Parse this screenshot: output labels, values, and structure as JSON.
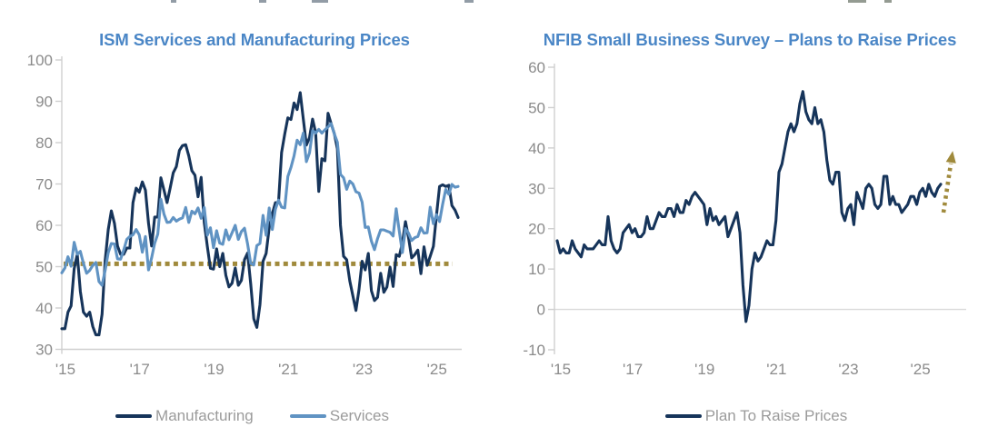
{
  "colors": {
    "navy": "#16345a",
    "light_blue": "#6093c3",
    "gold": "#a08a3c",
    "title_blue": "#4a86c6",
    "axis_text": "#8b8b8b",
    "legend_text": "#9b9b9b",
    "axis_line": "#cfcfcf",
    "gridline": "#d9d9d9"
  },
  "chart_data": [
    {
      "type": "line",
      "title": "ISM Services and Manufacturing Prices",
      "x_start": "2015-01",
      "x_end": "2025-09",
      "x_frequency": "monthly",
      "xtick_labels": [
        "'15",
        "'17",
        "'19",
        "'21",
        "'23",
        "'25"
      ],
      "xtick_years": [
        2015,
        2017,
        2019,
        2021,
        2023,
        2025
      ],
      "ylim": [
        30,
        100
      ],
      "yticks": [
        100,
        90,
        80,
        70,
        60,
        50,
        40,
        30
      ],
      "grid": "off",
      "legend_position": "bottom",
      "reference_line": {
        "value": 50.7,
        "style": "dotted",
        "color_key": "gold"
      },
      "series": [
        {
          "name": "Manufacturing",
          "color_key": "navy",
          "values": [
            35,
            35,
            39,
            40.5,
            49.5,
            53,
            44,
            39,
            38,
            39,
            35.5,
            33.5,
            33.5,
            38.5,
            51.5,
            59,
            63.5,
            60.5,
            55,
            53,
            53,
            54.5,
            54.5,
            65.5,
            69,
            68,
            70.5,
            68.5,
            60.5,
            55,
            62,
            62,
            71.5,
            68.5,
            65.5,
            69,
            72.7,
            74.2,
            78.1,
            79.3,
            79.5,
            76.8,
            73.2,
            72.1,
            66.9,
            71.6,
            60.7,
            54.9,
            49.6,
            49.4,
            54.3,
            50,
            53.2,
            47.9,
            45.1,
            46,
            49.7,
            45.5,
            46.7,
            51.7,
            53.3,
            45.9,
            37.4,
            35.3,
            40.8,
            51.3,
            53.2,
            59.5,
            62.8,
            65.5,
            65.4,
            77.6,
            82.1,
            86,
            85.6,
            89.6,
            88,
            92.1,
            85.7,
            79.4,
            81.2,
            85.7,
            82.4,
            68.2,
            76.1,
            75.6,
            87.1,
            84.6,
            82.2,
            78.5,
            60,
            52.5,
            51.7,
            46.6,
            43,
            39.4,
            44.5,
            51.3,
            49.2,
            53.2,
            44.2,
            41.8,
            42.6,
            48.4,
            43.8,
            45.1,
            49.9,
            45.2,
            52.9,
            52.5,
            55.8,
            60.9,
            57,
            52.1,
            52.9,
            54,
            48.3,
            54.8,
            50.3,
            52.5,
            54.9,
            62.4,
            69.4,
            69.8,
            69.4,
            69.7,
            64.8,
            63.7,
            61.9
          ]
        },
        {
          "name": "Services",
          "color_key": "light_blue",
          "values": [
            48.5,
            49.7,
            52.4,
            50.1,
            55.9,
            53,
            53.7,
            50.8,
            48.4,
            49.1,
            50.3,
            51,
            46.4,
            45.5,
            49.1,
            53.4,
            55.6,
            55.5,
            51.9,
            51.8,
            54,
            56.6,
            57.3,
            57.7,
            59,
            57.7,
            53.5,
            57.3,
            49.2,
            52.1,
            55.7,
            57.9,
            66.3,
            62.7,
            60.7,
            60.8,
            61.9,
            61,
            61.5,
            61.8,
            64.3,
            60.7,
            63.4,
            62.8,
            64.2,
            61.7,
            64.3,
            57.6,
            59.4,
            54.6,
            58.7,
            55.7,
            55.4,
            58.9,
            56.5,
            58.2,
            60,
            56.6,
            58.5,
            59.3,
            55.5,
            50.8,
            50.4,
            55.1,
            55.6,
            62.4,
            57.6,
            64.2,
            59,
            63.9,
            66.1,
            64.4,
            64.2,
            71.8,
            74,
            76.8,
            80.6,
            79.5,
            82.3,
            75.4,
            77.5,
            82.9,
            82.3,
            83.2,
            82.3,
            83.1,
            83.8,
            84.6,
            82.1,
            80.1,
            72.3,
            71.5,
            68.7,
            70.7,
            70,
            68.1,
            67.8,
            65.6,
            59.5,
            59.6,
            56.2,
            54.1,
            56.8,
            58.9,
            58.9,
            58.6,
            58.3,
            57.4,
            64,
            58.6,
            53.4,
            59.2,
            58.1,
            56.3,
            57,
            57.3,
            59.4,
            58.1,
            58.2,
            64.4,
            60.4,
            62.6,
            60.9,
            65.1,
            68.7,
            67.5,
            69.9,
            69.2,
            69.4
          ]
        }
      ]
    },
    {
      "type": "line",
      "title": "NFIB Small Business Survey – Plans to Raise Prices",
      "x_start": "2015-01",
      "x_end": "2025-09",
      "x_frequency": "monthly",
      "xtick_labels": [
        "'15",
        "'17",
        "'19",
        "'21",
        "'23",
        "'25"
      ],
      "xtick_years": [
        2015,
        2017,
        2019,
        2021,
        2023,
        2025
      ],
      "ylim": [
        -10,
        60
      ],
      "yticks": [
        60,
        50,
        40,
        30,
        20,
        10,
        0,
        -10
      ],
      "grid": "zero-line-only",
      "gridlines_at": [
        0
      ],
      "legend_position": "bottom",
      "annotation": {
        "type": "arrow",
        "style": "dotted",
        "color_key": "gold",
        "direction": "up",
        "value_from": 24,
        "value_to": 37.5,
        "position": "after-last-point"
      },
      "series": [
        {
          "name": "Plan To Raise Prices",
          "color_key": "navy",
          "values": [
            17,
            14,
            15,
            14,
            14,
            17,
            15,
            14,
            13,
            16,
            15,
            15,
            15,
            16,
            17,
            16,
            16,
            23,
            17,
            15,
            14,
            15,
            19,
            20,
            21,
            19,
            20,
            18,
            18,
            19,
            23,
            20,
            20,
            22,
            24,
            23,
            23,
            25,
            25,
            23,
            26,
            24,
            24,
            27,
            26,
            28,
            29,
            28,
            27,
            26,
            21,
            25,
            22,
            23,
            21,
            22,
            23,
            18,
            20,
            22,
            24,
            19,
            6,
            -3,
            1,
            10,
            14,
            12,
            13,
            15,
            17,
            16,
            16,
            22,
            34,
            36,
            40,
            44,
            46,
            44,
            46,
            51,
            54,
            49,
            47,
            46,
            50,
            46,
            47,
            44,
            37,
            32,
            31,
            34,
            34,
            24,
            22,
            25,
            26,
            21,
            29,
            27,
            25,
            30,
            31,
            30,
            26,
            25,
            26,
            33,
            33,
            26,
            28,
            26,
            26,
            24,
            25,
            26,
            28,
            28,
            26,
            29,
            30,
            28,
            31,
            29,
            28,
            30,
            31
          ]
        }
      ]
    }
  ]
}
